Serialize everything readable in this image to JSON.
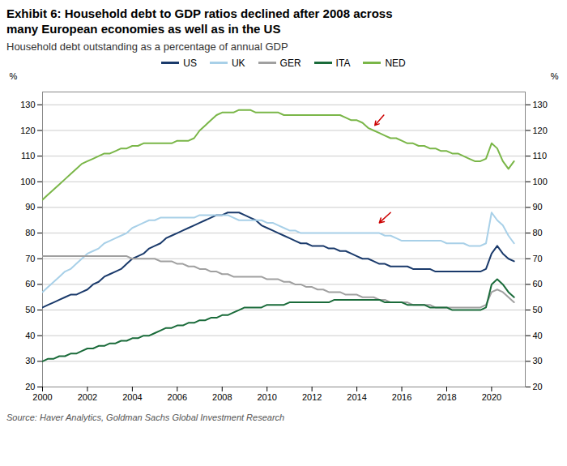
{
  "chart_data": {
    "type": "line",
    "title": "Exhibit 6: Household debt to GDP ratios declined after 2008 across\nmany European economies as well as in the US",
    "subtitle": "Household debt outstanding as a percentage of annual GDP",
    "source": "Source: Haver Analytics, Goldman Sachs Global Investment Research",
    "ylabel": "%",
    "y2label": "%",
    "xlim": [
      2000,
      2021.5
    ],
    "xticks": [
      2000,
      2002,
      2004,
      2006,
      2008,
      2010,
      2012,
      2014,
      2016,
      2018,
      2020
    ],
    "ylim": [
      20,
      135
    ],
    "yticks": [
      20,
      30,
      40,
      50,
      60,
      70,
      80,
      90,
      100,
      110,
      120,
      130
    ],
    "y2lim": [
      20,
      135
    ],
    "y2ticks": [
      20,
      30,
      40,
      50,
      60,
      70,
      80,
      90,
      100,
      110,
      120,
      130
    ],
    "grid": true,
    "legend": "top",
    "x": [
      2000,
      2000.25,
      2000.5,
      2000.75,
      2001,
      2001.25,
      2001.5,
      2001.75,
      2002,
      2002.25,
      2002.5,
      2002.75,
      2003,
      2003.25,
      2003.5,
      2003.75,
      2004,
      2004.25,
      2004.5,
      2004.75,
      2005,
      2005.25,
      2005.5,
      2005.75,
      2006,
      2006.25,
      2006.5,
      2006.75,
      2007,
      2007.25,
      2007.5,
      2007.75,
      2008,
      2008.25,
      2008.5,
      2008.75,
      2009,
      2009.25,
      2009.5,
      2009.75,
      2010,
      2010.25,
      2010.5,
      2010.75,
      2011,
      2011.25,
      2011.5,
      2011.75,
      2012,
      2012.25,
      2012.5,
      2012.75,
      2013,
      2013.25,
      2013.5,
      2013.75,
      2014,
      2014.25,
      2014.5,
      2014.75,
      2015,
      2015.25,
      2015.5,
      2015.75,
      2016,
      2016.25,
      2016.5,
      2016.75,
      2017,
      2017.25,
      2017.5,
      2017.75,
      2018,
      2018.25,
      2018.5,
      2018.75,
      2019,
      2019.25,
      2019.5,
      2019.75,
      2020,
      2020.25,
      2020.5,
      2020.75,
      2021
    ],
    "series": [
      {
        "name": "US",
        "color": "#1a3a6b",
        "values": [
          51,
          52,
          53,
          54,
          55,
          56,
          56,
          57,
          58,
          60,
          61,
          63,
          64,
          65,
          66,
          68,
          70,
          71,
          72,
          74,
          75,
          76,
          78,
          79,
          80,
          81,
          82,
          83,
          84,
          85,
          86,
          87,
          87,
          88,
          88,
          88,
          87,
          86,
          85,
          83,
          82,
          81,
          80,
          79,
          78,
          77,
          76,
          76,
          75,
          75,
          75,
          74,
          74,
          73,
          73,
          72,
          71,
          70,
          70,
          69,
          68,
          68,
          67,
          67,
          67,
          67,
          66,
          66,
          66,
          66,
          65,
          65,
          65,
          65,
          65,
          65,
          65,
          65,
          65,
          66,
          72,
          75,
          72,
          70,
          69
        ]
      },
      {
        "name": "UK",
        "color": "#a8d0e8",
        "values": [
          57,
          59,
          61,
          63,
          65,
          66,
          68,
          70,
          72,
          73,
          74,
          76,
          77,
          78,
          79,
          80,
          82,
          83,
          84,
          85,
          85,
          86,
          86,
          86,
          86,
          86,
          86,
          86,
          87,
          87,
          87,
          87,
          87,
          87,
          86,
          85,
          85,
          85,
          85,
          85,
          84,
          84,
          83,
          82,
          81,
          81,
          80,
          80,
          80,
          80,
          80,
          80,
          80,
          80,
          80,
          80,
          80,
          80,
          80,
          80,
          80,
          79,
          79,
          78,
          77,
          77,
          77,
          77,
          77,
          77,
          77,
          77,
          76,
          76,
          76,
          76,
          75,
          75,
          75,
          76,
          88,
          85,
          83,
          79,
          76
        ]
      },
      {
        "name": "GER",
        "color": "#a0a0a0",
        "values": [
          71,
          71,
          71,
          71,
          71,
          71,
          71,
          71,
          71,
          71,
          71,
          71,
          71,
          71,
          71,
          71,
          70,
          70,
          70,
          70,
          70,
          69,
          69,
          69,
          68,
          68,
          67,
          67,
          66,
          66,
          65,
          65,
          64,
          64,
          63,
          63,
          63,
          63,
          63,
          63,
          62,
          62,
          62,
          61,
          61,
          60,
          60,
          59,
          59,
          58,
          58,
          57,
          57,
          57,
          56,
          56,
          56,
          55,
          55,
          55,
          54,
          54,
          53,
          53,
          53,
          53,
          52,
          52,
          52,
          52,
          51,
          51,
          51,
          51,
          51,
          51,
          51,
          51,
          51,
          52,
          57,
          58,
          57,
          55,
          53
        ]
      },
      {
        "name": "ITA",
        "color": "#1a6b3a",
        "values": [
          30,
          31,
          31,
          32,
          32,
          33,
          33,
          34,
          35,
          35,
          36,
          36,
          37,
          37,
          38,
          38,
          39,
          39,
          40,
          40,
          41,
          42,
          43,
          43,
          44,
          44,
          45,
          45,
          46,
          46,
          47,
          47,
          48,
          48,
          49,
          50,
          51,
          51,
          51,
          51,
          52,
          52,
          52,
          52,
          53,
          53,
          53,
          53,
          53,
          53,
          53,
          53,
          54,
          54,
          54,
          54,
          54,
          54,
          54,
          54,
          54,
          53,
          53,
          53,
          53,
          52,
          52,
          52,
          52,
          51,
          51,
          51,
          51,
          50,
          50,
          50,
          50,
          50,
          50,
          51,
          60,
          62,
          60,
          57,
          55
        ]
      },
      {
        "name": "NED",
        "color": "#7ab648",
        "values": [
          93,
          95,
          97,
          99,
          101,
          103,
          105,
          107,
          108,
          109,
          110,
          111,
          111,
          112,
          113,
          113,
          114,
          114,
          115,
          115,
          115,
          115,
          115,
          115,
          116,
          116,
          116,
          117,
          120,
          122,
          124,
          126,
          127,
          127,
          127,
          128,
          128,
          128,
          127,
          127,
          127,
          127,
          127,
          126,
          126,
          126,
          126,
          126,
          126,
          126,
          126,
          126,
          126,
          126,
          125,
          124,
          124,
          123,
          121,
          120,
          119,
          118,
          117,
          117,
          116,
          115,
          115,
          114,
          114,
          113,
          113,
          112,
          112,
          111,
          111,
          110,
          109,
          108,
          108,
          109,
          115,
          113,
          108,
          105,
          108
        ]
      }
    ],
    "arrows": [
      {
        "x_start": 2015.2,
        "y_start": 126,
        "x_end": 2014.8,
        "y_end": 122,
        "color": "#cc0000"
      },
      {
        "x_start": 2015.5,
        "y_start": 88,
        "x_end": 2015.0,
        "y_end": 84,
        "color": "#cc0000"
      }
    ]
  }
}
